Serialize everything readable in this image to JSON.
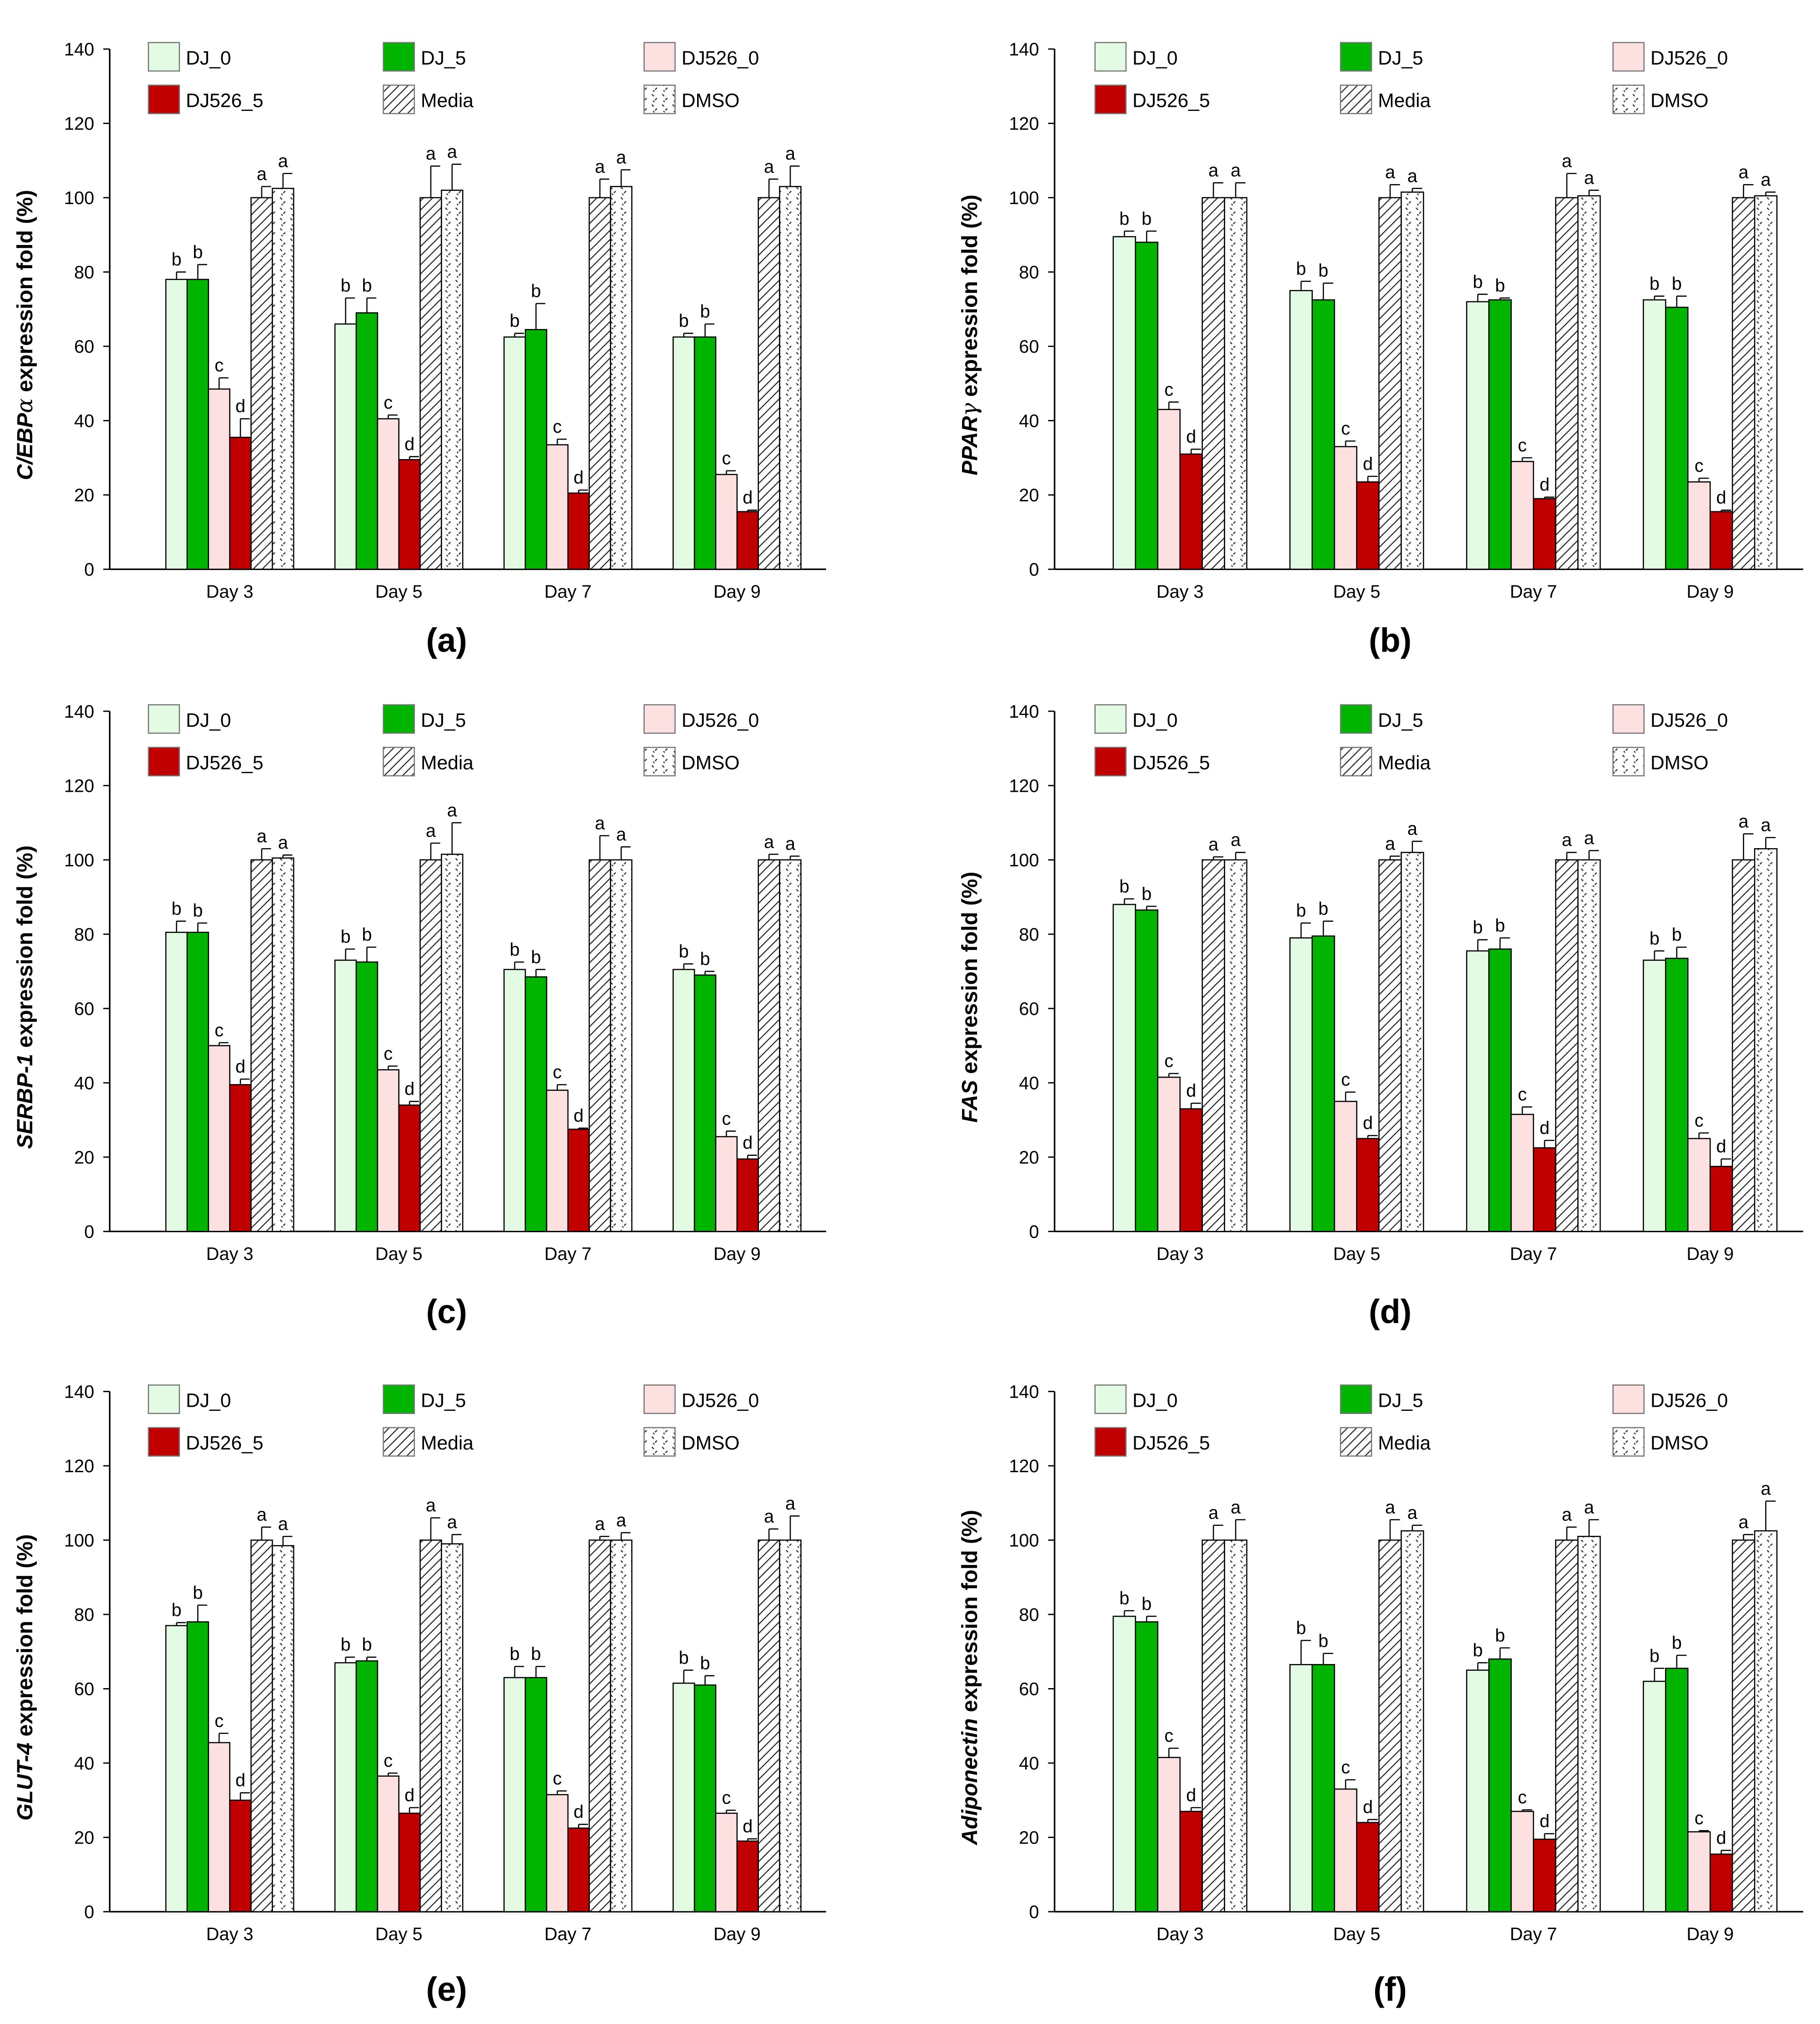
{
  "colors": {
    "DJ_0": "#e3fbe3",
    "DJ_5": "#00b400",
    "DJ526_0": "#fde0e0",
    "DJ526_5": "#c00000",
    "Media": "hatch",
    "DMSO": "dots"
  },
  "legend": [
    "DJ_0",
    "DJ_5",
    "DJ526_0",
    "DJ526_5",
    "Media",
    "DMSO"
  ],
  "chart_data": [
    {
      "type": "bar",
      "panel": "(a)",
      "gene": "C/EBP",
      "gene_suffix": "α",
      "ylabel_rest": " expression fold (%)",
      "categories": [
        "Day 3",
        "Day 5",
        "Day 7",
        "Day 9"
      ],
      "ylim": [
        0,
        140
      ],
      "yticks": [
        0,
        20,
        40,
        60,
        80,
        100,
        120,
        140
      ],
      "series": [
        {
          "name": "DJ_0",
          "values": [
            78,
            66,
            62.5,
            62.5
          ],
          "err": [
            2,
            7,
            1,
            1
          ],
          "sig": [
            "b",
            "b",
            "b",
            "b"
          ]
        },
        {
          "name": "DJ_5",
          "values": [
            78,
            69,
            64.5,
            62.5
          ],
          "err": [
            4,
            4,
            7,
            3.5
          ],
          "sig": [
            "b",
            "b",
            "b",
            "b"
          ]
        },
        {
          "name": "DJ526_0",
          "values": [
            48.5,
            40.5,
            33.5,
            25.5
          ],
          "err": [
            3,
            1,
            1.5,
            1
          ],
          "sig": [
            "c",
            "c",
            "c",
            "c"
          ]
        },
        {
          "name": "DJ526_5",
          "values": [
            35.5,
            29.5,
            20.5,
            15.5
          ],
          "err": [
            5,
            0.8,
            0.8,
            0.4
          ],
          "sig": [
            "d",
            "d",
            "d",
            "d"
          ]
        },
        {
          "name": "Media",
          "values": [
            100,
            100,
            100,
            100
          ],
          "err": [
            3,
            8.5,
            5,
            5
          ],
          "sig": [
            "a",
            "a",
            "a",
            "a"
          ]
        },
        {
          "name": "DMSO",
          "values": [
            102.5,
            102,
            103,
            103
          ],
          "err": [
            4,
            7,
            4.5,
            5.5
          ],
          "sig": [
            "a",
            "a",
            "a",
            "a"
          ]
        }
      ]
    },
    {
      "type": "bar",
      "panel": "(b)",
      "gene": "PPAR",
      "gene_suffix": "γ",
      "ylabel_rest": " expression fold (%)",
      "categories": [
        "Day 3",
        "Day 5",
        "Day 7",
        "Day 9"
      ],
      "ylim": [
        0,
        140
      ],
      "yticks": [
        0,
        20,
        40,
        60,
        80,
        100,
        120,
        140
      ],
      "series": [
        {
          "name": "DJ_0",
          "values": [
            89.5,
            75,
            72,
            72.5
          ],
          "err": [
            1.5,
            2.5,
            2,
            1
          ],
          "sig": [
            "b",
            "b",
            "b",
            "b"
          ]
        },
        {
          "name": "DJ_5",
          "values": [
            88,
            72.5,
            72.5,
            70.5
          ],
          "err": [
            3,
            4.5,
            0.5,
            3
          ],
          "sig": [
            "b",
            "b",
            "b",
            "b"
          ]
        },
        {
          "name": "DJ526_0",
          "values": [
            43,
            33,
            29,
            23.5
          ],
          "err": [
            2,
            1.5,
            1,
            1
          ],
          "sig": [
            "c",
            "c",
            "c",
            "c"
          ]
        },
        {
          "name": "DJ526_5",
          "values": [
            31,
            23.5,
            19,
            15.5
          ],
          "err": [
            1.3,
            1.5,
            0.4,
            0.4
          ],
          "sig": [
            "d",
            "d",
            "d",
            "d"
          ]
        },
        {
          "name": "Media",
          "values": [
            100,
            100,
            100,
            100
          ],
          "err": [
            4,
            3.5,
            6.5,
            3.5
          ],
          "sig": [
            "a",
            "a",
            "a",
            "a"
          ]
        },
        {
          "name": "DMSO",
          "values": [
            100,
            101.5,
            100.5,
            100.5
          ],
          "err": [
            4,
            1,
            1.5,
            1
          ],
          "sig": [
            "a",
            "a",
            "a",
            "a"
          ]
        }
      ]
    },
    {
      "type": "bar",
      "panel": "(c)",
      "gene": "SERBP-1",
      "gene_suffix": "",
      "ylabel_rest": " expression fold (%)",
      "categories": [
        "Day 3",
        "Day 5",
        "Day 7",
        "Day 9"
      ],
      "ylim": [
        0,
        140
      ],
      "yticks": [
        0,
        20,
        40,
        60,
        80,
        100,
        120,
        140
      ],
      "series": [
        {
          "name": "DJ_0",
          "values": [
            80.5,
            73,
            70.5,
            70.5
          ],
          "err": [
            3,
            3,
            2,
            1.5
          ],
          "sig": [
            "b",
            "b",
            "b",
            "b"
          ]
        },
        {
          "name": "DJ_5",
          "values": [
            80.5,
            72.5,
            68.5,
            69
          ],
          "err": [
            2.5,
            4,
            2,
            1
          ],
          "sig": [
            "b",
            "b",
            "b",
            "b"
          ]
        },
        {
          "name": "DJ526_0",
          "values": [
            50,
            43.5,
            38,
            25.5
          ],
          "err": [
            0.8,
            1,
            1.5,
            1.5
          ],
          "sig": [
            "c",
            "c",
            "c",
            "c"
          ]
        },
        {
          "name": "DJ526_5",
          "values": [
            39.5,
            34,
            27.5,
            19.5
          ],
          "err": [
            1.5,
            1,
            0.3,
            1
          ],
          "sig": [
            "d",
            "d",
            "d",
            "d"
          ]
        },
        {
          "name": "Media",
          "values": [
            100,
            100,
            100,
            100
          ],
          "err": [
            3,
            4.5,
            6.5,
            1.5
          ],
          "sig": [
            "a",
            "a",
            "a",
            "a"
          ]
        },
        {
          "name": "DMSO",
          "values": [
            100.5,
            101.5,
            100,
            100
          ],
          "err": [
            0.8,
            8.5,
            3.5,
            1
          ],
          "sig": [
            "a",
            "a",
            "a",
            "a"
          ]
        }
      ]
    },
    {
      "type": "bar",
      "panel": "(d)",
      "gene": "FAS",
      "gene_suffix": "",
      "ylabel_rest": " expression fold (%)",
      "categories": [
        "Day 3",
        "Day 5",
        "Day 7",
        "Day 9"
      ],
      "ylim": [
        0,
        140
      ],
      "yticks": [
        0,
        20,
        40,
        60,
        80,
        100,
        120,
        140
      ],
      "series": [
        {
          "name": "DJ_0",
          "values": [
            88,
            79,
            75.5,
            73
          ],
          "err": [
            1.5,
            4,
            3,
            2.5
          ],
          "sig": [
            "b",
            "b",
            "b",
            "b"
          ]
        },
        {
          "name": "DJ_5",
          "values": [
            86.5,
            79.5,
            76,
            73.5
          ],
          "err": [
            1,
            4,
            3,
            3
          ],
          "sig": [
            "b",
            "b",
            "b",
            "b"
          ]
        },
        {
          "name": "DJ526_0",
          "values": [
            41.5,
            35,
            31.5,
            25
          ],
          "err": [
            1,
            2.5,
            2,
            1.5
          ],
          "sig": [
            "c",
            "c",
            "c",
            "c"
          ]
        },
        {
          "name": "DJ526_5",
          "values": [
            33,
            25,
            22.5,
            17.5
          ],
          "err": [
            1.5,
            0.8,
            2,
            2
          ],
          "sig": [
            "d",
            "d",
            "d",
            "d"
          ]
        },
        {
          "name": "Media",
          "values": [
            100,
            100,
            100,
            100
          ],
          "err": [
            0.8,
            1,
            2,
            7
          ],
          "sig": [
            "a",
            "a",
            "a",
            "a"
          ]
        },
        {
          "name": "DMSO",
          "values": [
            100,
            102,
            100,
            103
          ],
          "err": [
            2,
            3,
            2.5,
            3
          ],
          "sig": [
            "a",
            "a",
            "a",
            "a"
          ]
        }
      ]
    },
    {
      "type": "bar",
      "panel": "(e)",
      "gene": "GLUT-4",
      "gene_suffix": "",
      "ylabel_rest": " expression fold (%)",
      "categories": [
        "Day 3",
        "Day 5",
        "Day 7",
        "Day 9"
      ],
      "ylim": [
        0,
        140
      ],
      "yticks": [
        0,
        20,
        40,
        60,
        80,
        100,
        120,
        140
      ],
      "series": [
        {
          "name": "DJ_0",
          "values": [
            77,
            67,
            63,
            61.5
          ],
          "err": [
            0.8,
            1.5,
            3,
            3.5
          ],
          "sig": [
            "b",
            "b",
            "b",
            "b"
          ]
        },
        {
          "name": "DJ_5",
          "values": [
            78,
            67.5,
            63,
            61
          ],
          "err": [
            4.5,
            1,
            3,
            2.5
          ],
          "sig": [
            "b",
            "b",
            "b",
            "b"
          ]
        },
        {
          "name": "DJ526_0",
          "values": [
            45.5,
            36.5,
            31.5,
            26.5
          ],
          "err": [
            2.5,
            0.8,
            1,
            0.8
          ],
          "sig": [
            "c",
            "c",
            "c",
            "c"
          ]
        },
        {
          "name": "DJ526_5",
          "values": [
            30,
            26.5,
            22.5,
            19
          ],
          "err": [
            2,
            1.5,
            1,
            0.6
          ],
          "sig": [
            "d",
            "d",
            "d",
            "d"
          ]
        },
        {
          "name": "Media",
          "values": [
            100,
            100,
            100,
            100
          ],
          "err": [
            3.5,
            6,
            1,
            3
          ],
          "sig": [
            "a",
            "a",
            "a",
            "a"
          ]
        },
        {
          "name": "DMSO",
          "values": [
            98.5,
            99,
            100,
            100
          ],
          "err": [
            2.5,
            2.5,
            2,
            6.5
          ],
          "sig": [
            "a",
            "a",
            "a",
            "a"
          ]
        }
      ]
    },
    {
      "type": "bar",
      "panel": "(f)",
      "gene": "Adiponectin",
      "gene_suffix": "",
      "ylabel_rest": " expression fold (%)",
      "categories": [
        "Day 3",
        "Day 5",
        "Day 7",
        "Day 9"
      ],
      "ylim": [
        0,
        140
      ],
      "yticks": [
        0,
        20,
        40,
        60,
        80,
        100,
        120,
        140
      ],
      "series": [
        {
          "name": "DJ_0",
          "values": [
            79.5,
            66.5,
            65,
            62
          ],
          "err": [
            1.5,
            6.5,
            2,
            3.5
          ],
          "sig": [
            "b",
            "b",
            "b",
            "b"
          ]
        },
        {
          "name": "DJ_5",
          "values": [
            78,
            66.5,
            68,
            65.5
          ],
          "err": [
            1.5,
            3,
            3,
            3.5
          ],
          "sig": [
            "b",
            "b",
            "b",
            "b"
          ]
        },
        {
          "name": "DJ526_0",
          "values": [
            41.5,
            33,
            27,
            21.5
          ],
          "err": [
            2.5,
            2.5,
            0.4,
            0.3
          ],
          "sig": [
            "c",
            "c",
            "c",
            "c"
          ]
        },
        {
          "name": "DJ526_5",
          "values": [
            27,
            24,
            19.5,
            15.5
          ],
          "err": [
            1,
            0.8,
            1.5,
            1
          ],
          "sig": [
            "d",
            "d",
            "d",
            "d"
          ]
        },
        {
          "name": "Media",
          "values": [
            100,
            100,
            100,
            100
          ],
          "err": [
            4,
            5.5,
            3.5,
            1.5
          ],
          "sig": [
            "a",
            "a",
            "a",
            "a"
          ]
        },
        {
          "name": "DMSO",
          "values": [
            100,
            102.5,
            101,
            102.5
          ],
          "err": [
            5.5,
            1.5,
            4.5,
            8
          ],
          "sig": [
            "a",
            "a",
            "a",
            "a"
          ]
        }
      ]
    }
  ]
}
